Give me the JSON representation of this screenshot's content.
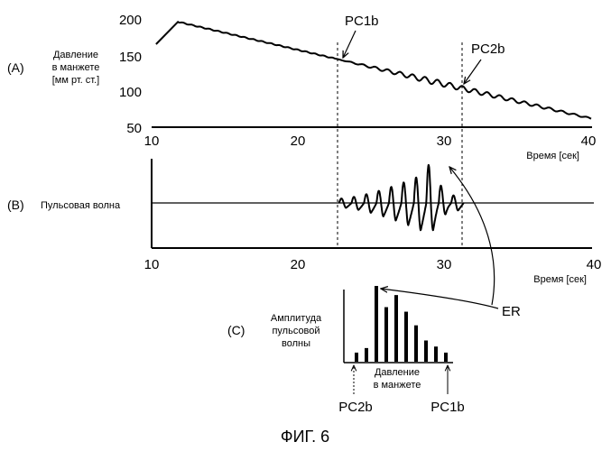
{
  "figure_caption": "ФИГ. 6",
  "colors": {
    "ink": "#000000",
    "background": "#ffffff"
  },
  "chart_data": [
    {
      "panel": "(A)",
      "type": "line",
      "ylabel_lines": [
        "Давление",
        "в манжете",
        "[мм рт. ст.]"
      ],
      "xlabel": "Время [сек]",
      "xlim": [
        10,
        40
      ],
      "ylim": [
        50,
        200
      ],
      "xticks": [
        "10",
        "20",
        "30",
        "40"
      ],
      "yticks": [
        "200",
        "150",
        "100",
        "50"
      ],
      "series": [
        {
          "points": [
            [
              10.3,
              165
            ],
            [
              11.8,
              196
            ],
            [
              40,
              62
            ]
          ],
          "oscillation": {
            "start": 22.5,
            "peak": 29,
            "end": 40
          }
        }
      ],
      "markers": [
        {
          "label": "PC1b",
          "x": 22.8,
          "y": 140
        },
        {
          "label": "PC2b",
          "x": 31.3,
          "y": 104
        }
      ]
    },
    {
      "panel": "(B)",
      "type": "line",
      "ylabel": "Пульсовая волна",
      "xlabel": "Время [сек]",
      "xlim": [
        10,
        40
      ],
      "xticks": [
        "10",
        "20",
        "30",
        "40"
      ],
      "pulse_window": [
        22.8,
        31.3
      ],
      "pulse_peak_time": 29,
      "annotation": "ER"
    },
    {
      "panel": "(C)",
      "type": "bar",
      "ylabel_lines": [
        "Амплитуда",
        "пульсовой",
        "волны"
      ],
      "xlabel_lines": [
        "Давление",
        "в манжете"
      ],
      "values": [
        0.12,
        0.18,
        1.0,
        0.72,
        0.88,
        0.66,
        0.48,
        0.28,
        0.2,
        0.12
      ],
      "left_label": "PC2b",
      "right_label": "PC1b",
      "annotation": "ER"
    }
  ]
}
